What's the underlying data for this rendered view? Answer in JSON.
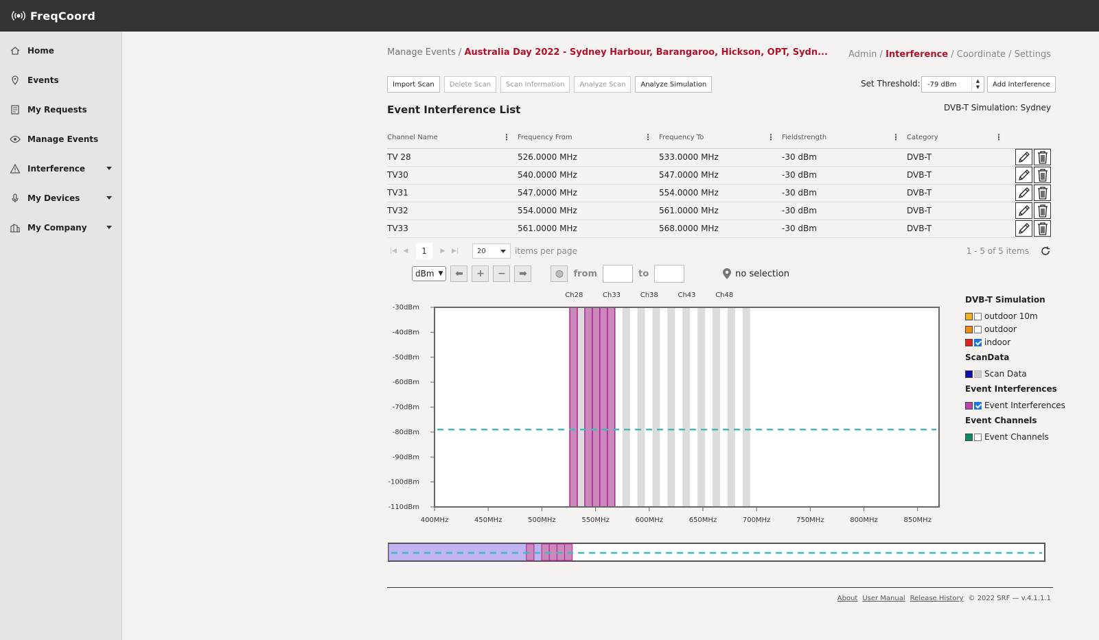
{
  "app": {
    "name": "FreqCoord"
  },
  "sidebar": {
    "items": [
      {
        "label": "Home",
        "icon": "home-icon",
        "caret": false
      },
      {
        "label": "Events",
        "icon": "location-pin-icon",
        "caret": false
      },
      {
        "label": "My Requests",
        "icon": "requests-icon",
        "caret": false
      },
      {
        "label": "Manage Events",
        "icon": "eye-icon",
        "caret": false
      },
      {
        "label": "Interference",
        "icon": "warning-icon",
        "caret": true
      },
      {
        "label": "My Devices",
        "icon": "microphone-icon",
        "caret": true
      },
      {
        "label": "My Company",
        "icon": "company-icon",
        "caret": true
      }
    ]
  },
  "breadcrumb": {
    "root": "Manage Events",
    "sep": " / ",
    "event": "Australia Day 2022 - Sydney Harbour, Barangaroo, Hickson, OPT, Sydn..."
  },
  "topnav": {
    "admin": "Admin",
    "interference": "Interference",
    "coordinate": "Coordinate",
    "settings": "Settings",
    "sep": " / "
  },
  "toolbar": {
    "import_scan": "Import Scan",
    "delete_scan": "Delete Scan",
    "scan_information": "Scan Information",
    "analyze_scan": "Analyze Scan",
    "analyze_simulation": "Analyze Simulation"
  },
  "threshold": {
    "label": "Set Threshold:",
    "value": "-79 dBm",
    "add_button": "Add Interference"
  },
  "list": {
    "title": "Event Interference List",
    "simulation_label": "DVB-T Simulation: Sydney",
    "columns": [
      "Channel Name",
      "Frequency From",
      "Frequency To",
      "Fieldstrength",
      "Category"
    ],
    "rows": [
      {
        "name": "TV 28",
        "from": "526.0000 MHz",
        "to": "533.0000 MHz",
        "field": "-30 dBm",
        "category": "DVB-T"
      },
      {
        "name": "TV30",
        "from": "540.0000 MHz",
        "to": "547.0000 MHz",
        "field": "-30 dBm",
        "category": "DVB-T"
      },
      {
        "name": "TV31",
        "from": "547.0000 MHz",
        "to": "554.0000 MHz",
        "field": "-30 dBm",
        "category": "DVB-T"
      },
      {
        "name": "TV32",
        "from": "554.0000 MHz",
        "to": "561.0000 MHz",
        "field": "-30 dBm",
        "category": "DVB-T"
      },
      {
        "name": "TV33",
        "from": "561.0000 MHz",
        "to": "568.0000 MHz",
        "field": "-30 dBm",
        "category": "DVB-T"
      }
    ]
  },
  "pager": {
    "page": "1",
    "page_size": "20",
    "items_per_page": "items per page",
    "range": "1 - 5 of 5 items"
  },
  "chart_controls": {
    "unit": "dBm",
    "from": "from",
    "to": "to",
    "selection": "no selection"
  },
  "chart_data": {
    "type": "area",
    "x_unit": "MHz",
    "xlim": [
      400,
      870
    ],
    "ylim": [
      -110,
      -30
    ],
    "x_ticks": [
      400,
      450,
      500,
      550,
      600,
      650,
      700,
      750,
      800,
      850
    ],
    "x_tick_labels": [
      "400MHz",
      "450MHz",
      "500MHz",
      "550MHz",
      "600MHz",
      "650MHz",
      "700MHz",
      "750MHz",
      "800MHz",
      "850MHz"
    ],
    "y_ticks": [
      -30,
      -40,
      -50,
      -60,
      -70,
      -80,
      -90,
      -100,
      -110
    ],
    "y_tick_labels": [
      "-30dBm",
      "-40dBm",
      "-50dBm",
      "-60dBm",
      "-70dBm",
      "-80dBm",
      "-90dBm",
      "-100dBm",
      "-110dBm"
    ],
    "channel_labels": [
      {
        "label": "Ch28",
        "freq": 530
      },
      {
        "label": "Ch33",
        "freq": 565
      },
      {
        "label": "Ch38",
        "freq": 600
      },
      {
        "label": "Ch43",
        "freq": 635
      },
      {
        "label": "Ch48",
        "freq": 670
      }
    ],
    "channel_bands": {
      "start": 526,
      "end": 694,
      "width": 7
    },
    "threshold": -79,
    "interferences": [
      {
        "from": 526,
        "to": 533,
        "level": -30
      },
      {
        "from": 540,
        "to": 547,
        "level": -30
      },
      {
        "from": 547,
        "to": 554,
        "level": -30
      },
      {
        "from": 554,
        "to": 561,
        "level": -30
      },
      {
        "from": 561,
        "to": 568,
        "level": -30
      }
    ],
    "navigator": {
      "xlim": [
        400,
        1000
      ],
      "selection": [
        400,
        554
      ]
    },
    "colors": {
      "interference_fill": "#cc88bb",
      "interference_stroke": "#aa2299",
      "threshold": "#44bbbb",
      "band": "#dcdcdc",
      "navigator_fill": "#aa99ee"
    }
  },
  "legend": {
    "groups": [
      {
        "title": "DVB-T Simulation",
        "items": [
          {
            "label": "outdoor 10m",
            "color": "#f0b020",
            "state": "unchecked"
          },
          {
            "label": "outdoor",
            "color": "#f08c10",
            "state": "unchecked"
          },
          {
            "label": "indoor",
            "color": "#e02020",
            "state": "checked"
          }
        ]
      },
      {
        "title": "ScanData",
        "items": [
          {
            "label": "Scan Data",
            "color": "#1010b0",
            "state": "disabled"
          }
        ]
      },
      {
        "title": "Event Interferences",
        "items": [
          {
            "label": "Event Interferences",
            "color": "#bb44aa",
            "state": "checked"
          }
        ]
      },
      {
        "title": "Event Channels",
        "items": [
          {
            "label": "Event Channels",
            "color": "#118866",
            "state": "unchecked"
          }
        ]
      }
    ]
  },
  "footer": {
    "about": "About",
    "manual": "User Manual",
    "release": "Release History",
    "copyright": "© 2022 SRF — v.4.1.1.1"
  }
}
